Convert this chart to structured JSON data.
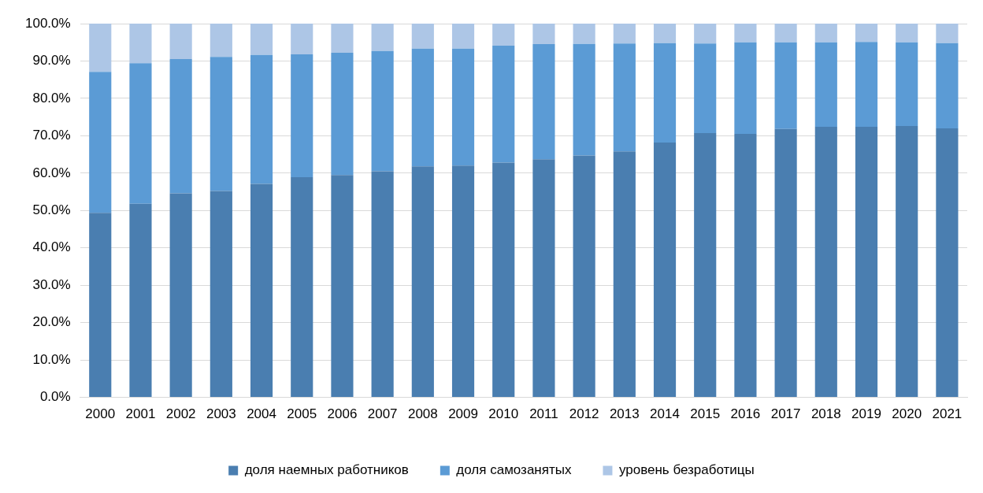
{
  "chart_data": {
    "type": "bar",
    "stacked": true,
    "categories": [
      "2000",
      "2001",
      "2002",
      "2003",
      "2004",
      "2005",
      "2006",
      "2007",
      "2008",
      "2009",
      "2010",
      "2011",
      "2012",
      "2013",
      "2014",
      "2015",
      "2016",
      "2017",
      "2018",
      "2019",
      "2020",
      "2021"
    ],
    "series": [
      {
        "name": "доля наемных работников",
        "color": "#4a7eb0",
        "values": [
          49.4,
          51.8,
          54.6,
          55.2,
          57.1,
          58.9,
          59.5,
          60.5,
          61.8,
          62.0,
          62.8,
          63.7,
          64.7,
          65.8,
          68.2,
          70.7,
          70.5,
          71.8,
          72.4,
          72.4,
          72.6,
          72.0
        ]
      },
      {
        "name": "доля самозанятых",
        "color": "#5b9bd5",
        "values": [
          37.7,
          37.6,
          35.9,
          35.9,
          34.5,
          32.9,
          32.7,
          32.2,
          31.5,
          31.3,
          31.3,
          30.8,
          29.9,
          28.9,
          26.6,
          24.0,
          24.5,
          23.2,
          22.6,
          22.7,
          22.4,
          22.8
        ]
      },
      {
        "name": "уровень безработицы",
        "color": "#adc6e6",
        "values": [
          12.9,
          10.6,
          9.5,
          8.9,
          8.4,
          8.2,
          7.8,
          7.3,
          6.7,
          6.7,
          5.9,
          5.5,
          5.4,
          5.3,
          5.2,
          5.3,
          5.0,
          5.0,
          5.0,
          4.9,
          5.0,
          5.2
        ]
      }
    ],
    "ylim": [
      0,
      100
    ],
    "yticks": [
      {
        "value": 0,
        "label": "0.0%"
      },
      {
        "value": 10,
        "label": "10.0%"
      },
      {
        "value": 20,
        "label": "20.0%"
      },
      {
        "value": 30,
        "label": "30.0%"
      },
      {
        "value": 40,
        "label": "40.0%"
      },
      {
        "value": 50,
        "label": "50.0%"
      },
      {
        "value": 60,
        "label": "60.0%"
      },
      {
        "value": 70,
        "label": "70.0%"
      },
      {
        "value": 80,
        "label": "80.0%"
      },
      {
        "value": 90,
        "label": "90.0%"
      },
      {
        "value": 100,
        "label": "100.0%"
      }
    ],
    "grid": "y",
    "legend": "bottom"
  }
}
